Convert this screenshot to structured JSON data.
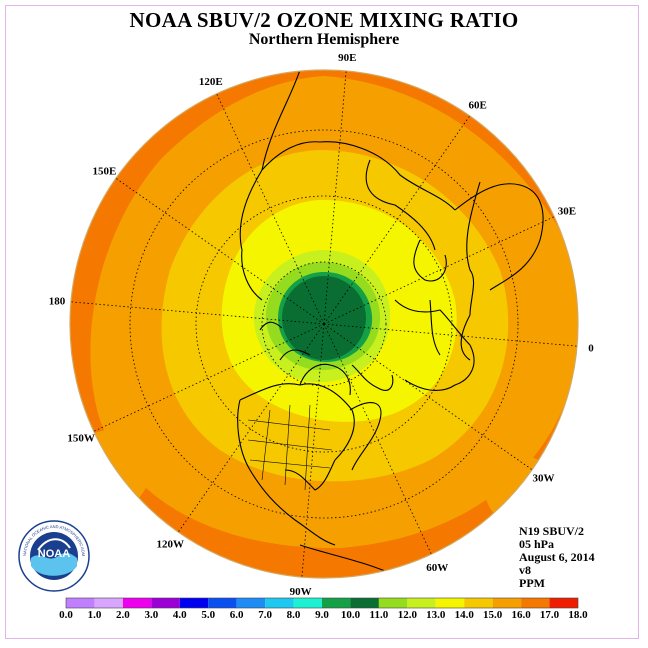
{
  "title": "NOAA SBUV/2 OZONE MIXING RATIO",
  "subtitle": "Northern Hemisphere",
  "longitude_labels": [
    "90E",
    "60E",
    "30E",
    "0",
    "30W",
    "60W",
    "90W",
    "120W",
    "150W",
    "180",
    "150E",
    "120E"
  ],
  "info": {
    "satellite": "N19 SBUV/2",
    "level": "05 hPa",
    "date": "August 6, 2014",
    "version": "v8",
    "units": "PPM"
  },
  "logo": {
    "text": "NOAA",
    "ring_text": "NATIONAL OCEANIC AND ATMOSPHERIC ADMINISTRATION · U.S. DEPARTMENT OF COMMERCE"
  },
  "color_scale": {
    "labels": [
      "0.0",
      "1.0",
      "2.0",
      "3.0",
      "4.0",
      "5.0",
      "6.0",
      "7.0",
      "8.0",
      "9.0",
      "10.0",
      "11.0",
      "12.0",
      "13.0",
      "14.0",
      "15.0",
      "16.0",
      "17.0",
      "18.0"
    ],
    "colors": [
      "#bf7fff",
      "#d9a6ff",
      "#ee00ee",
      "#9c00d6",
      "#0000f0",
      "#0a4ff0",
      "#1e8cf5",
      "#1ec8f0",
      "#1ef0d2",
      "#14a046",
      "#0a6e32",
      "#96dc1e",
      "#c8f01e",
      "#f5f500",
      "#f5c800",
      "#f5a000",
      "#f57800",
      "#f01e00",
      "#b4321e"
    ]
  }
}
